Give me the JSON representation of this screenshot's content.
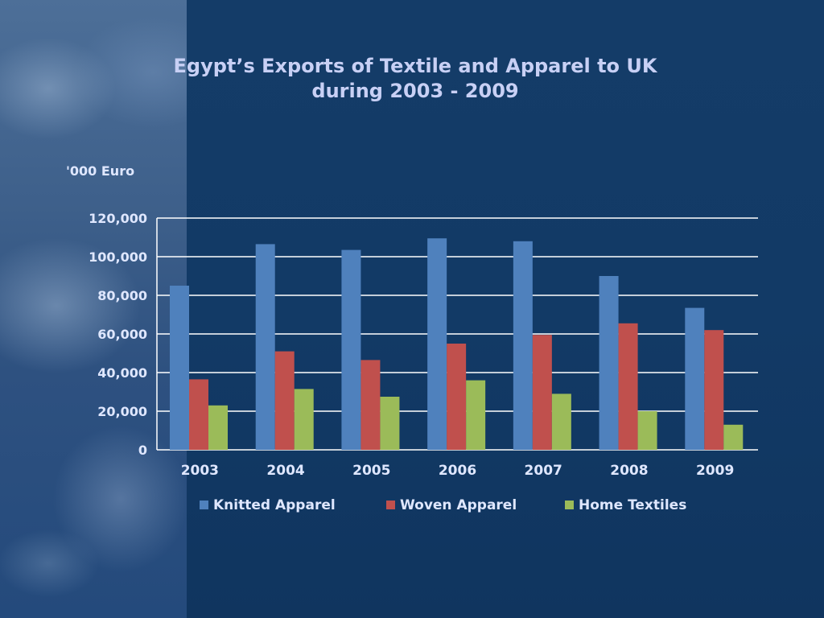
{
  "chart_data": {
    "type": "bar",
    "title_line1": "Egypt’s Exports of Textile and Apparel to UK",
    "title_line2": "during 2003 - 2009",
    "ylabel": "'000 Euro",
    "xlabel": "",
    "ylim": [
      0,
      120000
    ],
    "yticks": [
      0,
      20000,
      40000,
      60000,
      80000,
      100000,
      120000
    ],
    "ytick_labels": [
      "0",
      "20,000",
      "40,000",
      "60,000",
      "80,000",
      "100,000",
      "120,000"
    ],
    "grid": true,
    "legend_position": "bottom",
    "categories": [
      "2003",
      "2004",
      "2005",
      "2006",
      "2007",
      "2008",
      "2009"
    ],
    "series": [
      {
        "name": "Knitted Apparel",
        "color": "#4f81bd",
        "values": [
          85000,
          106500,
          103500,
          109500,
          108000,
          90000,
          73500
        ]
      },
      {
        "name": "Woven Apparel",
        "color": "#c0504d",
        "values": [
          36500,
          51000,
          46500,
          55000,
          59500,
          65500,
          62000
        ]
      },
      {
        "name": "Home Textiles",
        "color": "#9bbb59",
        "values": [
          23000,
          31500,
          27500,
          36000,
          29000,
          20000,
          13000
        ]
      }
    ]
  }
}
